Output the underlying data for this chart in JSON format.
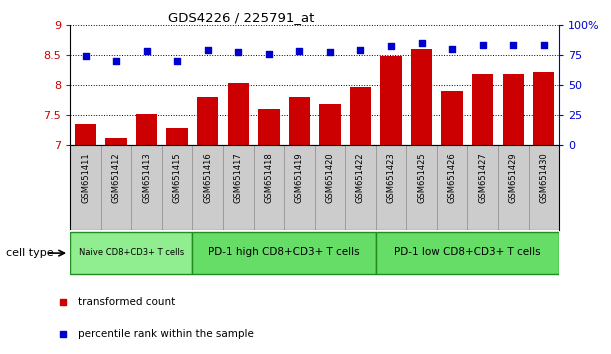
{
  "title": "GDS4226 / 225791_at",
  "samples": [
    "GSM651411",
    "GSM651412",
    "GSM651413",
    "GSM651415",
    "GSM651416",
    "GSM651417",
    "GSM651418",
    "GSM651419",
    "GSM651420",
    "GSM651422",
    "GSM651423",
    "GSM651425",
    "GSM651426",
    "GSM651427",
    "GSM651429",
    "GSM651430"
  ],
  "transformed_count": [
    7.35,
    7.12,
    7.52,
    7.28,
    7.8,
    8.04,
    7.6,
    7.8,
    7.68,
    7.97,
    8.48,
    8.6,
    7.9,
    8.18,
    8.18,
    8.22
  ],
  "percentile_rank": [
    74,
    70,
    78,
    70,
    79,
    77,
    76,
    78,
    77,
    79,
    82,
    85,
    80,
    83,
    83,
    83
  ],
  "bar_color": "#cc0000",
  "dot_color": "#0000cc",
  "ylim_left": [
    7,
    9
  ],
  "ylim_right": [
    0,
    100
  ],
  "yticks_left": [
    7,
    7.5,
    8,
    8.5,
    9
  ],
  "yticks_right": [
    0,
    25,
    50,
    75,
    100
  ],
  "cell_type_groups": [
    {
      "label": "Naive CD8+CD3+ T cells",
      "start": 0,
      "end": 4
    },
    {
      "label": "PD-1 high CD8+CD3+ T cells",
      "start": 4,
      "end": 10
    },
    {
      "label": "PD-1 low CD8+CD3+ T cells",
      "start": 10,
      "end": 16
    }
  ],
  "group_colors": [
    "#90ee90",
    "#66dd66",
    "#66dd66"
  ],
  "legend_items": [
    {
      "label": "transformed count",
      "color": "#cc0000"
    },
    {
      "label": "percentile rank within the sample",
      "color": "#0000cc"
    }
  ],
  "cell_type_label": "cell type",
  "background_color": "#ffffff",
  "xtick_bg": "#cccccc",
  "ylabel_left_color": "#cc0000",
  "ylabel_right_color": "#0000cc"
}
